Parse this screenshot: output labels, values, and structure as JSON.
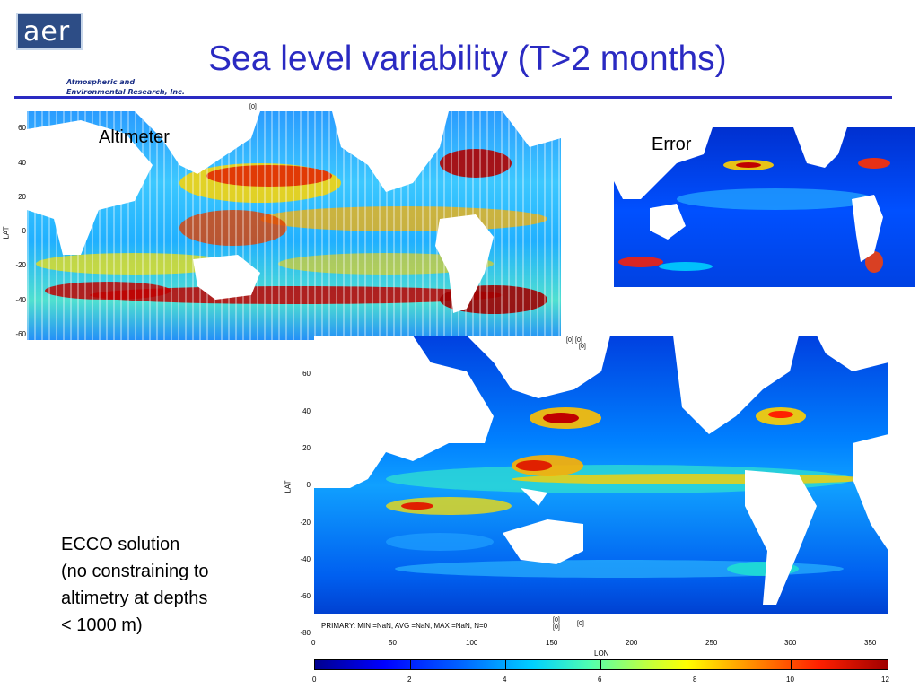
{
  "logo": {
    "text": "aer",
    "line1": "Atmospheric and",
    "line2": "Environmental Research, Inc."
  },
  "title": "Sea level variability (T>2 months)",
  "maps": {
    "altimeter": {
      "label": "Altimeter",
      "lat_ticks": [
        "60",
        "40",
        "20",
        "0",
        "-20",
        "-40",
        "-60"
      ],
      "lat_label": "LAT",
      "marker": "[0]"
    },
    "error": {
      "label": "Error"
    },
    "ecco": {
      "lat_ticks": [
        "60",
        "40",
        "20",
        "0",
        "-20",
        "-40",
        "-60",
        "-80"
      ],
      "lon_ticks": [
        "0",
        "50",
        "100",
        "150",
        "200",
        "250",
        "300",
        "350"
      ],
      "lat_label": "LAT",
      "lon_label": "LON",
      "stats": "PRIMARY: MIN =NaN, AVG =NaN, MAX =NaN, N=0",
      "markers": {
        "top1": "[0]",
        "top2": "[0]",
        "top3": "[0]",
        "bot1": "[0]",
        "bot2": "[0]",
        "bot3": "[0]"
      }
    }
  },
  "colorbar": {
    "ticks": [
      "0",
      "2",
      "4",
      "6",
      "8",
      "10",
      "12"
    ],
    "colors": [
      "#00008f",
      "#0000ff",
      "#00d0ff",
      "#ffff00",
      "#ff2000",
      "#a00000"
    ]
  },
  "caption": {
    "line1": "ECCO solution",
    "line2": "(no constraining to",
    "line3": "altimetry at depths",
    "line4": "< 1000 m)"
  }
}
